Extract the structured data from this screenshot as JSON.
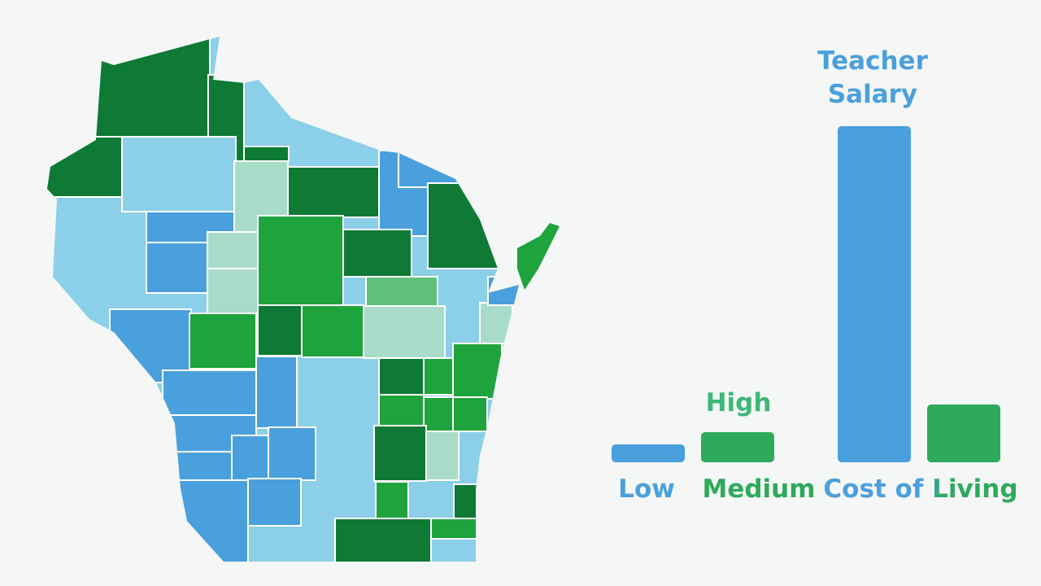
{
  "labels": {
    "teacher_salary": [
      "Teacher",
      "Salary"
    ],
    "high": "High",
    "low": "Low",
    "medium": "Medium",
    "cost_of_living": "Cost of Living"
  }
}
